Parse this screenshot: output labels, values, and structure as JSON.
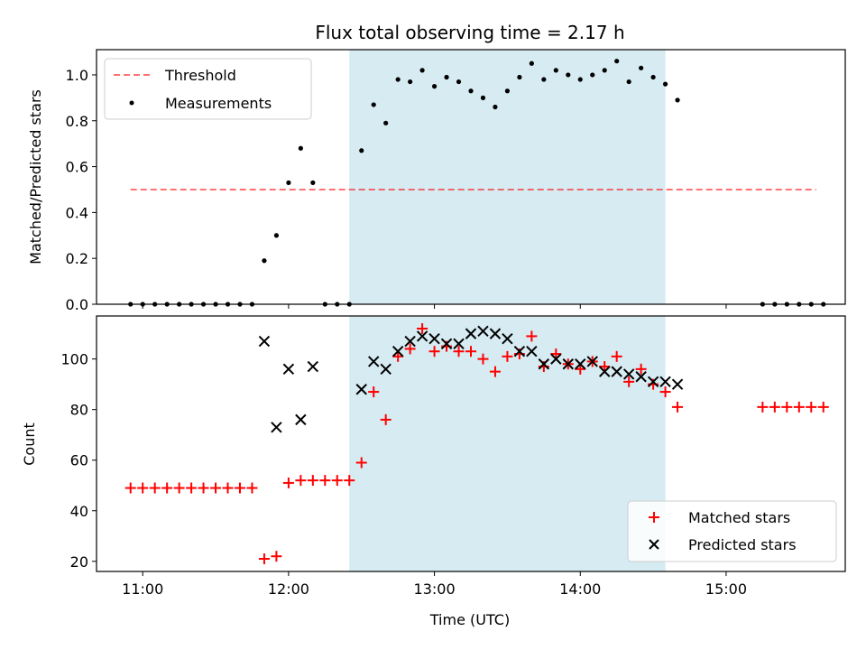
{
  "figure": {
    "title": "Flux total observing time = 2.17 h",
    "xlabel": "Time (UTC)",
    "shaded_band_color": "#add8e6",
    "threshold_color": "#ff0000",
    "matched_color": "#ff0000",
    "predicted_color": "#000000",
    "measurement_color": "#000000"
  },
  "chart_data": [
    {
      "type": "scatter",
      "ylabel": "Matched/Predicted stars",
      "xlim": [
        "10:41",
        "15:49"
      ],
      "ylim": [
        0,
        1.11
      ],
      "x_ticks": [
        "11:00",
        "12:00",
        "13:00",
        "14:00",
        "15:00"
      ],
      "y_ticks": [
        "0.0",
        "0.2",
        "0.4",
        "0.6",
        "0.8",
        "1.0"
      ],
      "shaded_interval": [
        "12:25",
        "14:35"
      ],
      "legend_position": "upper-left",
      "threshold": {
        "name": "Threshold",
        "y": 0.5,
        "x_range": [
          "10:55",
          "15:37"
        ]
      },
      "series": [
        {
          "name": "Measurements",
          "points": [
            [
              "10:55",
              0
            ],
            [
              "11:00",
              0
            ],
            [
              "11:05",
              0
            ],
            [
              "11:10",
              0
            ],
            [
              "11:15",
              0
            ],
            [
              "11:20",
              0
            ],
            [
              "11:25",
              0
            ],
            [
              "11:30",
              0
            ],
            [
              "11:35",
              0
            ],
            [
              "11:40",
              0
            ],
            [
              "11:45",
              0
            ],
            [
              "11:50",
              0.19
            ],
            [
              "11:55",
              0.3
            ],
            [
              "12:00",
              0.53
            ],
            [
              "12:05",
              0.68
            ],
            [
              "12:10",
              0.53
            ],
            [
              "12:15",
              0
            ],
            [
              "12:20",
              0
            ],
            [
              "12:25",
              0
            ],
            [
              "12:30",
              0.67
            ],
            [
              "12:35",
              0.87
            ],
            [
              "12:40",
              0.79
            ],
            [
              "12:45",
              0.98
            ],
            [
              "12:50",
              0.97
            ],
            [
              "12:55",
              1.02
            ],
            [
              "13:00",
              0.95
            ],
            [
              "13:05",
              0.99
            ],
            [
              "13:10",
              0.97
            ],
            [
              "13:15",
              0.93
            ],
            [
              "13:20",
              0.9
            ],
            [
              "13:25",
              0.86
            ],
            [
              "13:30",
              0.93
            ],
            [
              "13:35",
              0.99
            ],
            [
              "13:40",
              1.05
            ],
            [
              "13:45",
              0.98
            ],
            [
              "13:50",
              1.02
            ],
            [
              "13:55",
              1.0
            ],
            [
              "14:00",
              0.98
            ],
            [
              "14:05",
              1.0
            ],
            [
              "14:10",
              1.02
            ],
            [
              "14:15",
              1.06
            ],
            [
              "14:20",
              0.97
            ],
            [
              "14:25",
              1.03
            ],
            [
              "14:30",
              0.99
            ],
            [
              "14:35",
              0.96
            ],
            [
              "14:40",
              0.89
            ],
            [
              "15:15",
              0
            ],
            [
              "15:20",
              0
            ],
            [
              "15:25",
              0
            ],
            [
              "15:30",
              0
            ],
            [
              "15:35",
              0
            ],
            [
              "15:40",
              0
            ]
          ]
        }
      ]
    },
    {
      "type": "scatter",
      "ylabel": "Count",
      "xlabel": "Time (UTC)",
      "xlim": [
        "10:41",
        "15:49"
      ],
      "ylim": [
        16,
        117
      ],
      "x_ticks": [
        "11:00",
        "12:00",
        "13:00",
        "14:00",
        "15:00"
      ],
      "y_ticks": [
        "20",
        "40",
        "60",
        "80",
        "100"
      ],
      "shaded_interval": [
        "12:25",
        "14:35"
      ],
      "legend_position": "lower-right",
      "series": [
        {
          "name": "Matched stars",
          "marker": "plus",
          "points": [
            [
              "10:55",
              49
            ],
            [
              "11:00",
              49
            ],
            [
              "11:05",
              49
            ],
            [
              "11:10",
              49
            ],
            [
              "11:15",
              49
            ],
            [
              "11:20",
              49
            ],
            [
              "11:25",
              49
            ],
            [
              "11:30",
              49
            ],
            [
              "11:35",
              49
            ],
            [
              "11:40",
              49
            ],
            [
              "11:45",
              49
            ],
            [
              "11:50",
              21
            ],
            [
              "11:55",
              22
            ],
            [
              "12:00",
              51
            ],
            [
              "12:05",
              52
            ],
            [
              "12:10",
              52
            ],
            [
              "12:15",
              52
            ],
            [
              "12:20",
              52
            ],
            [
              "12:25",
              52
            ],
            [
              "12:30",
              59
            ],
            [
              "12:35",
              87
            ],
            [
              "12:40",
              76
            ],
            [
              "12:45",
              101
            ],
            [
              "12:50",
              104
            ],
            [
              "12:55",
              112
            ],
            [
              "13:00",
              103
            ],
            [
              "13:05",
              105
            ],
            [
              "13:10",
              103
            ],
            [
              "13:15",
              103
            ],
            [
              "13:20",
              100
            ],
            [
              "13:25",
              95
            ],
            [
              "13:30",
              101
            ],
            [
              "13:35",
              102
            ],
            [
              "13:40",
              109
            ],
            [
              "13:45",
              97
            ],
            [
              "13:50",
              102
            ],
            [
              "13:55",
              98
            ],
            [
              "14:00",
              96
            ],
            [
              "14:05",
              99
            ],
            [
              "14:10",
              97
            ],
            [
              "14:15",
              101
            ],
            [
              "14:20",
              91
            ],
            [
              "14:25",
              96
            ],
            [
              "14:30",
              90
            ],
            [
              "14:35",
              87
            ],
            [
              "14:40",
              81
            ],
            [
              "15:15",
              81
            ],
            [
              "15:20",
              81
            ],
            [
              "15:25",
              81
            ],
            [
              "15:30",
              81
            ],
            [
              "15:35",
              81
            ],
            [
              "15:40",
              81
            ]
          ]
        },
        {
          "name": "Predicted stars",
          "marker": "x",
          "points": [
            [
              "11:50",
              107
            ],
            [
              "11:55",
              73
            ],
            [
              "12:00",
              96
            ],
            [
              "12:05",
              76
            ],
            [
              "12:10",
              97
            ],
            [
              "12:30",
              88
            ],
            [
              "12:35",
              99
            ],
            [
              "12:40",
              96
            ],
            [
              "12:45",
              103
            ],
            [
              "12:50",
              107
            ],
            [
              "12:55",
              109
            ],
            [
              "13:00",
              108
            ],
            [
              "13:05",
              106
            ],
            [
              "13:10",
              106
            ],
            [
              "13:15",
              110
            ],
            [
              "13:20",
              111
            ],
            [
              "13:25",
              110
            ],
            [
              "13:30",
              108
            ],
            [
              "13:35",
              103
            ],
            [
              "13:40",
              103
            ],
            [
              "13:45",
              98
            ],
            [
              "13:50",
              100
            ],
            [
              "13:55",
              98
            ],
            [
              "14:00",
              98
            ],
            [
              "14:05",
              99
            ],
            [
              "14:10",
              95
            ],
            [
              "14:15",
              95
            ],
            [
              "14:20",
              94
            ],
            [
              "14:25",
              93
            ],
            [
              "14:30",
              91
            ],
            [
              "14:35",
              91
            ],
            [
              "14:40",
              90
            ]
          ]
        }
      ]
    }
  ]
}
